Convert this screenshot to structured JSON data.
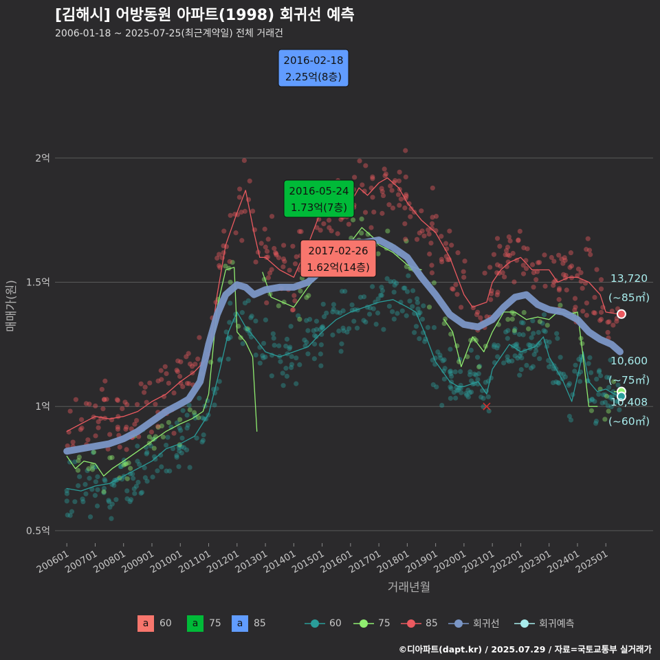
{
  "title": "[김해시] 어방동원 아파트(1998) 회귀선 예측",
  "subtitle": "2006-01-18 ~ 2025-07-25(최근계약일) 전체 거래건",
  "credit": "©디아파트(dapt.kr) / 2025.07.29 / 자료=국토교통부 실거래가",
  "colors": {
    "background": "#2b2a2c",
    "area60": "#f8766d",
    "area75": "#00ba38",
    "area85": "#619cff",
    "dot60": "#2a9d9a",
    "dot75": "#90ee70",
    "dot85": "#ec5a60",
    "regression": "#7b96c6",
    "forecast": "#a8ecec"
  },
  "legend": {
    "label_boxes": [
      {
        "key": "a",
        "label": "60",
        "color": "#f8766d"
      },
      {
        "key": "a",
        "label": "75",
        "color": "#00ba38"
      },
      {
        "key": "a",
        "label": "85",
        "color": "#619cff"
      }
    ],
    "lines": [
      {
        "label": "60",
        "color": "#2a9d9a"
      },
      {
        "label": "75",
        "color": "#90ee70"
      },
      {
        "label": "85",
        "color": "#ec5a60"
      },
      {
        "label": "회귀선",
        "color": "#7b96c6"
      },
      {
        "label": "회귀예측",
        "color": "#a8ecec"
      }
    ]
  },
  "chart_data": {
    "type": "line",
    "xlabel": "거래년월",
    "ylabel": "매매가(원)",
    "x_range": [
      "2005-08",
      "2026-09"
    ],
    "ylim": [
      0.45,
      2.47
    ],
    "y_ticks": [
      {
        "value": 0.5,
        "label": "0.5억"
      },
      {
        "value": 1.0,
        "label": "1억"
      },
      {
        "value": 1.5,
        "label": "1.5억"
      },
      {
        "value": 2.0,
        "label": "2억"
      }
    ],
    "x_ticks": [
      "200601",
      "200701",
      "200801",
      "200901",
      "201001",
      "201101",
      "201201",
      "201301",
      "201401",
      "201501",
      "201601",
      "201701",
      "201801",
      "201901",
      "202001",
      "202101",
      "202201",
      "202301",
      "202401",
      "202501"
    ],
    "grid": "horizontal",
    "legend_position": "bottom",
    "series": [
      {
        "name": "60",
        "color": "#2a9d9a",
        "width": 1.3,
        "points": [
          [
            2006.0,
            0.67
          ],
          [
            2006.5,
            0.66
          ],
          [
            2007.0,
            0.68
          ],
          [
            2007.5,
            0.69
          ],
          [
            2008.0,
            0.72
          ],
          [
            2008.5,
            0.75
          ],
          [
            2009.0,
            0.78
          ],
          [
            2009.5,
            0.83
          ],
          [
            2010.0,
            0.85
          ],
          [
            2010.5,
            0.88
          ],
          [
            2011.0,
            0.97
          ],
          [
            2011.4,
            1.15
          ],
          [
            2011.7,
            1.3
          ],
          [
            2012.0,
            1.38
          ],
          [
            2012.3,
            1.32
          ],
          [
            2012.6,
            1.28
          ],
          [
            2013.0,
            1.22
          ],
          [
            2013.5,
            1.2
          ],
          [
            2014.0,
            1.22
          ],
          [
            2014.5,
            1.24
          ],
          [
            2015.0,
            1.3
          ],
          [
            2015.5,
            1.35
          ],
          [
            2016.0,
            1.38
          ],
          [
            2016.5,
            1.4
          ],
          [
            2017.0,
            1.42
          ],
          [
            2017.5,
            1.43
          ],
          [
            2018.0,
            1.4
          ],
          [
            2018.3,
            1.38
          ],
          [
            2018.6,
            1.3
          ],
          [
            2019.0,
            1.18
          ],
          [
            2019.5,
            1.1
          ],
          [
            2019.8,
            1.08
          ],
          [
            2020.0,
            1.08
          ],
          [
            2020.5,
            1.1
          ],
          [
            2020.8,
            1.05
          ],
          [
            2021.0,
            1.15
          ],
          [
            2021.3,
            1.2
          ],
          [
            2021.6,
            1.25
          ],
          [
            2022.0,
            1.22
          ],
          [
            2022.5,
            1.24
          ],
          [
            2022.8,
            1.28
          ],
          [
            2023.0,
            1.2
          ],
          [
            2023.5,
            1.1
          ],
          [
            2023.8,
            1.02
          ],
          [
            2024.0,
            1.12
          ],
          [
            2024.2,
            1.22
          ],
          [
            2024.4,
            1.1
          ],
          [
            2024.7,
            1.06
          ],
          [
            2025.0,
            1.07
          ],
          [
            2025.3,
            1.05
          ],
          [
            2025.55,
            1.04
          ]
        ]
      },
      {
        "name": "75",
        "color": "#90ee70",
        "width": 1.3,
        "points": [
          [
            2006.0,
            0.8
          ],
          [
            2006.3,
            0.75
          ],
          [
            2006.6,
            0.78
          ],
          [
            2007.0,
            0.77
          ],
          [
            2007.3,
            0.72
          ],
          [
            2007.6,
            0.75
          ],
          [
            2008.0,
            0.78
          ],
          [
            2008.5,
            0.82
          ],
          [
            2009.0,
            0.86
          ],
          [
            2009.5,
            0.9
          ],
          [
            2010.0,
            0.93
          ],
          [
            2010.4,
            0.95
          ],
          [
            2010.8,
            0.98
          ],
          [
            2011.0,
            1.05
          ],
          [
            2011.3,
            1.4
          ],
          [
            2011.6,
            1.55
          ],
          [
            2011.9,
            1.56
          ],
          [
            2012.0,
            1.3
          ],
          [
            2012.3,
            1.26
          ],
          [
            2012.55,
            1.2
          ],
          [
            2012.7,
            0.9
          ]
        ]
      },
      {
        "name": "75",
        "color": "#90ee70",
        "width": 1.3,
        "points": [
          [
            2012.9,
            1.54
          ],
          [
            2013.2,
            1.44
          ],
          [
            2013.6,
            1.42
          ],
          [
            2014.0,
            1.4
          ],
          [
            2014.5,
            1.48
          ],
          [
            2015.0,
            1.55
          ],
          [
            2015.5,
            1.66
          ],
          [
            2016.0,
            1.66
          ],
          [
            2016.4,
            1.72
          ],
          [
            2016.8,
            1.68
          ],
          [
            2017.0,
            1.65
          ],
          [
            2017.5,
            1.62
          ],
          [
            2018.0,
            1.57
          ],
          [
            2018.5,
            1.55
          ]
        ]
      },
      {
        "name": "75",
        "color": "#90ee70",
        "width": 1.3,
        "points": [
          [
            2019.3,
            1.35
          ],
          [
            2019.6,
            1.3
          ],
          [
            2019.9,
            1.16
          ],
          [
            2020.3,
            1.28
          ],
          [
            2020.7,
            1.22
          ],
          [
            2021.0,
            1.3
          ],
          [
            2021.4,
            1.38
          ],
          [
            2021.8,
            1.38
          ],
          [
            2022.2,
            1.35
          ],
          [
            2022.6,
            1.36
          ],
          [
            2023.0,
            1.35
          ],
          [
            2023.3,
            1.38
          ],
          [
            2023.7,
            1.37
          ],
          [
            2024.0,
            1.38
          ],
          [
            2024.2,
            1.2
          ],
          [
            2024.4,
            1.0
          ],
          [
            2024.7,
            1.0
          ]
        ]
      },
      {
        "name": "75",
        "color": "#90ee70",
        "width": 1.3,
        "points": [
          [
            2025.3,
            1.06
          ],
          [
            2025.55,
            1.06
          ]
        ]
      },
      {
        "name": "85",
        "color": "#ec5a60",
        "width": 1.3,
        "points": [
          [
            2006.0,
            0.9
          ],
          [
            2006.5,
            0.93
          ],
          [
            2007.0,
            0.96
          ],
          [
            2007.5,
            0.95
          ],
          [
            2008.0,
            0.96
          ],
          [
            2008.5,
            0.98
          ],
          [
            2009.0,
            1.02
          ],
          [
            2009.5,
            1.05
          ],
          [
            2010.0,
            1.1
          ],
          [
            2010.5,
            1.14
          ],
          [
            2011.0,
            1.2
          ],
          [
            2011.3,
            1.45
          ],
          [
            2011.6,
            1.65
          ],
          [
            2012.0,
            1.78
          ],
          [
            2012.3,
            1.87
          ],
          [
            2012.6,
            1.7
          ],
          [
            2012.8,
            1.6
          ],
          [
            2013.0,
            1.6
          ],
          [
            2013.5,
            1.55
          ],
          [
            2014.0,
            1.52
          ],
          [
            2014.5,
            1.65
          ],
          [
            2015.0,
            1.8
          ],
          [
            2015.5,
            1.84
          ],
          [
            2016.0,
            1.82
          ],
          [
            2016.3,
            1.88
          ],
          [
            2016.6,
            1.85
          ],
          [
            2017.0,
            1.9
          ],
          [
            2017.3,
            1.92
          ],
          [
            2017.7,
            1.88
          ],
          [
            2018.0,
            1.82
          ],
          [
            2018.5,
            1.75
          ],
          [
            2019.0,
            1.7
          ],
          [
            2019.5,
            1.6
          ],
          [
            2020.0,
            1.45
          ],
          [
            2020.3,
            1.4
          ],
          [
            2020.8,
            1.42
          ],
          [
            2021.0,
            1.5
          ],
          [
            2021.3,
            1.55
          ],
          [
            2021.6,
            1.58
          ],
          [
            2022.0,
            1.6
          ],
          [
            2022.4,
            1.55
          ],
          [
            2022.8,
            1.55
          ],
          [
            2023.0,
            1.55
          ],
          [
            2023.3,
            1.5
          ],
          [
            2023.7,
            1.52
          ],
          [
            2024.0,
            1.52
          ],
          [
            2024.4,
            1.5
          ],
          [
            2024.8,
            1.45
          ],
          [
            2025.0,
            1.38
          ],
          [
            2025.55,
            1.37
          ]
        ]
      },
      {
        "name": "회귀선",
        "color": "#7b96c6",
        "width": 10,
        "points": [
          [
            2006.0,
            0.82
          ],
          [
            2006.5,
            0.83
          ],
          [
            2007.0,
            0.84
          ],
          [
            2007.5,
            0.85
          ],
          [
            2008.0,
            0.87
          ],
          [
            2008.5,
            0.9
          ],
          [
            2009.0,
            0.94
          ],
          [
            2009.5,
            0.98
          ],
          [
            2010.0,
            1.01
          ],
          [
            2010.3,
            1.03
          ],
          [
            2010.7,
            1.1
          ],
          [
            2011.0,
            1.25
          ],
          [
            2011.3,
            1.37
          ],
          [
            2011.6,
            1.45
          ],
          [
            2012.0,
            1.49
          ],
          [
            2012.3,
            1.48
          ],
          [
            2012.6,
            1.45
          ],
          [
            2013.0,
            1.47
          ],
          [
            2013.5,
            1.48
          ],
          [
            2014.0,
            1.48
          ],
          [
            2014.5,
            1.5
          ],
          [
            2015.0,
            1.55
          ],
          [
            2015.5,
            1.6
          ],
          [
            2016.0,
            1.66
          ],
          [
            2016.5,
            1.66
          ],
          [
            2017.0,
            1.67
          ],
          [
            2017.5,
            1.64
          ],
          [
            2018.0,
            1.6
          ],
          [
            2018.5,
            1.52
          ],
          [
            2019.0,
            1.45
          ],
          [
            2019.5,
            1.37
          ],
          [
            2020.0,
            1.33
          ],
          [
            2020.5,
            1.32
          ],
          [
            2021.0,
            1.35
          ],
          [
            2021.4,
            1.4
          ],
          [
            2021.8,
            1.44
          ],
          [
            2022.2,
            1.45
          ],
          [
            2022.6,
            1.41
          ],
          [
            2023.0,
            1.39
          ],
          [
            2023.5,
            1.38
          ],
          [
            2024.0,
            1.35
          ],
          [
            2024.4,
            1.3
          ],
          [
            2024.8,
            1.27
          ],
          [
            2025.2,
            1.25
          ],
          [
            2025.5,
            1.22
          ]
        ]
      }
    ],
    "scatter": [
      {
        "name": "60",
        "color": "#2a9d9a",
        "center": "60",
        "spread": 0.07,
        "count": 470
      },
      {
        "name": "75",
        "color": "#90ee70",
        "center": "75",
        "spread": 0.05,
        "count": 110
      },
      {
        "name": "85",
        "color": "#ec5a60",
        "center": "85",
        "spread": 0.09,
        "count": 390
      }
    ],
    "annotations": [
      {
        "date": "2016-02-18",
        "value_text": "2.25억(8층)",
        "x": 2016.13,
        "y": 2.25,
        "fill": "#619cff",
        "text_color": "#111111"
      },
      {
        "date": "2016-05-24",
        "value_text": "1.73억(7층)",
        "x": 2016.4,
        "y": 1.73,
        "fill": "#00ba38",
        "text_color": "#111111"
      },
      {
        "date": "2017-02-26",
        "value_text": "1.62억(14층)",
        "x": 2017.15,
        "y": 1.62,
        "fill": "#f8766d",
        "text_color": "#111111"
      }
    ],
    "end_labels": [
      {
        "value": "13,720",
        "area": "(~85㎡)",
        "y": 1.372,
        "color": "#ec5a60"
      },
      {
        "value": "10,600",
        "area": "(~75㎡)",
        "y": 1.06,
        "color": "#90ee70"
      },
      {
        "value": "10,408",
        "area": "(~60㎡)",
        "y": 1.0408,
        "color": "#2a9d9a"
      }
    ],
    "marker_x": {
      "x": 2020.8,
      "y": 1.0
    }
  }
}
